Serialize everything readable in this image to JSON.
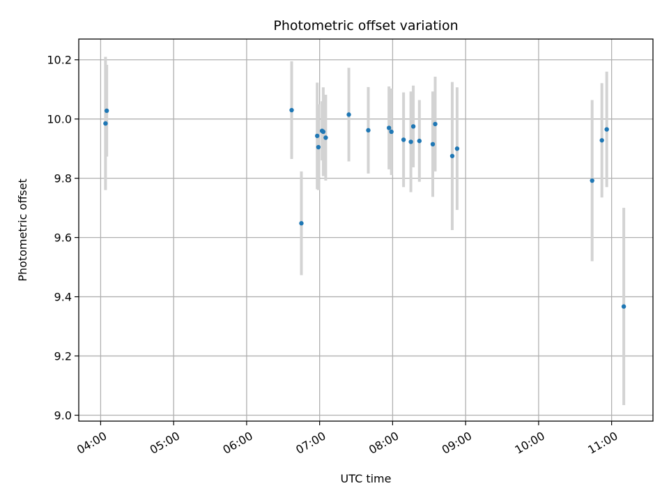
{
  "chart_data": {
    "type": "scatter",
    "title": "Photometric offset variation",
    "xlabel": "UTC time",
    "ylabel": "Photometric offset",
    "x_axis": "time",
    "xlim": [
      "03:42",
      "11:34"
    ],
    "ylim": [
      8.98,
      10.27
    ],
    "xticks": [
      "04:00",
      "05:00",
      "06:00",
      "07:00",
      "08:00",
      "09:00",
      "10:00",
      "11:00"
    ],
    "yticks": [
      9.0,
      9.2,
      9.4,
      9.6,
      9.8,
      10.0,
      10.2
    ],
    "grid": true,
    "marker_color": "#1f77b4",
    "errorbar_color": "#d3d3d3",
    "points": [
      {
        "t": "04:04",
        "y": 9.985,
        "err": 0.225
      },
      {
        "t": "04:05",
        "y": 10.028,
        "err": 0.155
      },
      {
        "t": "06:37",
        "y": 10.03,
        "err": 0.165
      },
      {
        "t": "06:45",
        "y": 9.648,
        "err": 0.175
      },
      {
        "t": "06:58",
        "y": 9.943,
        "err": 0.18
      },
      {
        "t": "06:59",
        "y": 9.905,
        "err": 0.145
      },
      {
        "t": "07:02",
        "y": 9.96,
        "err": 0.1
      },
      {
        "t": "07:03",
        "y": 9.957,
        "err": 0.15
      },
      {
        "t": "07:05",
        "y": 9.937,
        "err": 0.145
      },
      {
        "t": "07:24",
        "y": 10.015,
        "err": 0.158
      },
      {
        "t": "07:40",
        "y": 9.962,
        "err": 0.146
      },
      {
        "t": "07:57",
        "y": 9.97,
        "err": 0.14
      },
      {
        "t": "07:59",
        "y": 9.957,
        "err": 0.146
      },
      {
        "t": "08:09",
        "y": 9.93,
        "err": 0.16
      },
      {
        "t": "08:15",
        "y": 9.923,
        "err": 0.17
      },
      {
        "t": "08:17",
        "y": 9.975,
        "err": 0.138
      },
      {
        "t": "08:22",
        "y": 9.926,
        "err": 0.138
      },
      {
        "t": "08:33",
        "y": 9.915,
        "err": 0.178
      },
      {
        "t": "08:35",
        "y": 9.983,
        "err": 0.16
      },
      {
        "t": "08:49",
        "y": 9.875,
        "err": 0.25
      },
      {
        "t": "08:53",
        "y": 9.9,
        "err": 0.207
      },
      {
        "t": "10:44",
        "y": 9.792,
        "err": 0.272
      },
      {
        "t": "10:52",
        "y": 9.928,
        "err": 0.193
      },
      {
        "t": "10:56",
        "y": 9.965,
        "err": 0.195
      },
      {
        "t": "11:10",
        "y": 9.367,
        "err": 0.333
      }
    ]
  }
}
